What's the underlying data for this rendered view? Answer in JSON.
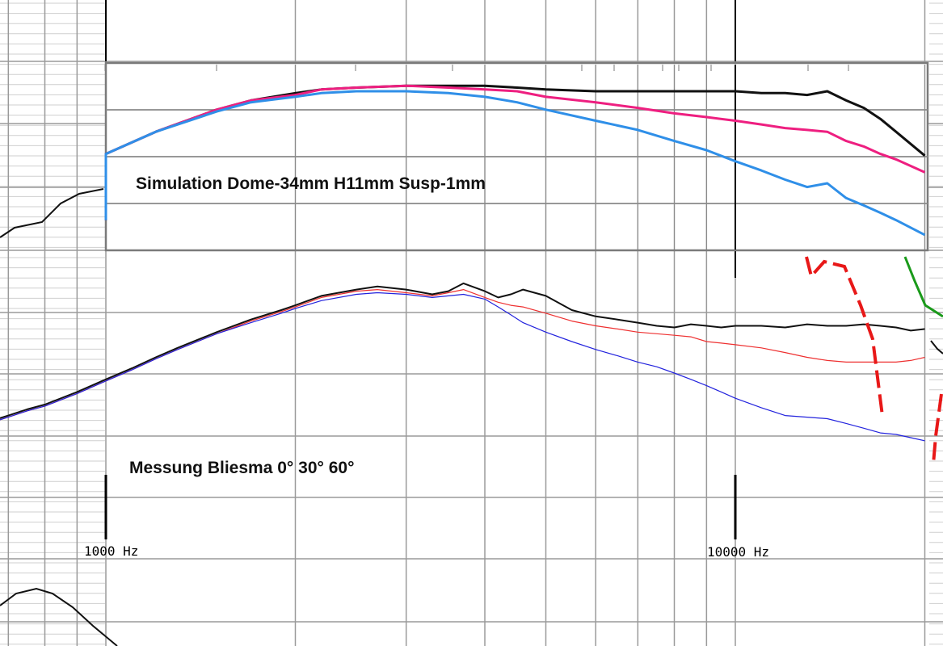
{
  "colors": {
    "background": "#ffffff",
    "grid": "#9a9a9a",
    "grid_minor": "#cfcfcf",
    "inset_border": "#7a7a7a",
    "black": "#111111",
    "pink": "#ee1f80",
    "light_blue": "#2f8fe8",
    "red": "#ee3030",
    "blue": "#2222dd",
    "marker_red": "#e81818",
    "marker_green": "#1a9a1a"
  },
  "chart_data": [
    {
      "type": "line",
      "title": "Simulation Dome-34mm H11mm Susp-1mm",
      "xscale": "log",
      "xlim": [
        600,
        20000
      ],
      "ylim": [
        0,
        1
      ],
      "series": [
        {
          "color_key": "black",
          "x": [
            600,
            700,
            800,
            900,
            1000,
            1200,
            1500,
            1700,
            2000,
            2200,
            2500,
            3000,
            3500,
            4000,
            4500,
            5000,
            6000,
            7000,
            8000,
            9000,
            10000,
            11000,
            12000,
            13000,
            14000,
            15000,
            16000,
            17000,
            18000,
            20000
          ],
          "y": [
            0.12,
            0.22,
            0.31,
            0.4,
            0.48,
            0.6,
            0.72,
            0.77,
            0.81,
            0.83,
            0.84,
            0.85,
            0.85,
            0.85,
            0.84,
            0.83,
            0.82,
            0.82,
            0.82,
            0.82,
            0.82,
            0.81,
            0.81,
            0.8,
            0.82,
            0.77,
            0.73,
            0.67,
            0.6,
            0.47
          ]
        },
        {
          "color_key": "pink",
          "x": [
            600,
            700,
            800,
            900,
            1000,
            1200,
            1500,
            1700,
            2000,
            2200,
            2500,
            3000,
            3500,
            4000,
            4500,
            5000,
            6000,
            7000,
            8000,
            9000,
            10000,
            11000,
            12000,
            13000,
            14000,
            15000,
            16000,
            17000,
            18000,
            20000
          ],
          "y": [
            0.12,
            0.22,
            0.31,
            0.4,
            0.48,
            0.6,
            0.72,
            0.77,
            0.8,
            0.83,
            0.84,
            0.85,
            0.84,
            0.83,
            0.82,
            0.79,
            0.76,
            0.73,
            0.7,
            0.68,
            0.66,
            0.64,
            0.62,
            0.61,
            0.6,
            0.55,
            0.52,
            0.48,
            0.45,
            0.38
          ]
        },
        {
          "color_key": "light_blue",
          "x": [
            600,
            700,
            800,
            900,
            1000,
            1200,
            1500,
            1700,
            2000,
            2200,
            2500,
            3000,
            3500,
            4000,
            4500,
            5000,
            6000,
            7000,
            8000,
            9000,
            10000,
            11000,
            12000,
            13000,
            14000,
            15000,
            16000,
            17000,
            18000,
            20000
          ],
          "y": [
            0.12,
            0.22,
            0.31,
            0.4,
            0.48,
            0.6,
            0.71,
            0.76,
            0.79,
            0.81,
            0.82,
            0.82,
            0.81,
            0.79,
            0.76,
            0.72,
            0.66,
            0.61,
            0.55,
            0.5,
            0.44,
            0.39,
            0.34,
            0.3,
            0.32,
            0.24,
            0.2,
            0.16,
            0.12,
            0.04
          ]
        }
      ]
    },
    {
      "type": "line",
      "title": "Messung Bliesma 0° 30° 60°",
      "xscale": "log",
      "xlim": [
        600,
        20000
      ],
      "ylim": [
        0,
        1
      ],
      "x_ticks": [
        {
          "value": 1000,
          "label": "1000 Hz"
        },
        {
          "value": 10000,
          "label": "10000 Hz"
        }
      ],
      "series": [
        {
          "color_key": "black",
          "x": [
            600,
            650,
            700,
            750,
            800,
            900,
            1000,
            1100,
            1200,
            1300,
            1500,
            1700,
            1900,
            2000,
            2200,
            2500,
            2700,
            3000,
            3300,
            3500,
            3700,
            4000,
            4200,
            4400,
            4600,
            5000,
            5500,
            6000,
            6500,
            7000,
            7500,
            8000,
            8500,
            9000,
            9500,
            10000,
            11000,
            12000,
            13000,
            14000,
            15000,
            16000,
            17000,
            18000,
            19000,
            20000
          ],
          "y": [
            0.05,
            0.09,
            0.13,
            0.17,
            0.2,
            0.28,
            0.36,
            0.43,
            0.5,
            0.56,
            0.66,
            0.74,
            0.8,
            0.83,
            0.89,
            0.93,
            0.95,
            0.93,
            0.9,
            0.92,
            0.97,
            0.92,
            0.88,
            0.9,
            0.93,
            0.89,
            0.8,
            0.76,
            0.74,
            0.72,
            0.7,
            0.69,
            0.71,
            0.7,
            0.69,
            0.7,
            0.7,
            0.69,
            0.71,
            0.7,
            0.7,
            0.71,
            0.7,
            0.69,
            0.67,
            0.68
          ]
        },
        {
          "color_key": "red",
          "x": [
            600,
            650,
            700,
            750,
            800,
            900,
            1000,
            1100,
            1200,
            1300,
            1500,
            1700,
            1900,
            2000,
            2200,
            2500,
            2700,
            3000,
            3300,
            3500,
            3700,
            4000,
            4200,
            4400,
            4600,
            5000,
            5500,
            6000,
            6500,
            7000,
            7500,
            8000,
            8500,
            9000,
            9500,
            10000,
            11000,
            12000,
            13000,
            14000,
            15000,
            16000,
            17000,
            18000,
            19000,
            20000
          ],
          "y": [
            0.04,
            0.08,
            0.12,
            0.16,
            0.19,
            0.27,
            0.35,
            0.42,
            0.49,
            0.55,
            0.65,
            0.73,
            0.79,
            0.82,
            0.88,
            0.92,
            0.93,
            0.91,
            0.89,
            0.91,
            0.93,
            0.88,
            0.85,
            0.83,
            0.82,
            0.78,
            0.73,
            0.7,
            0.68,
            0.66,
            0.65,
            0.64,
            0.63,
            0.6,
            0.59,
            0.58,
            0.56,
            0.53,
            0.5,
            0.48,
            0.47,
            0.47,
            0.47,
            0.47,
            0.48,
            0.5
          ]
        },
        {
          "color_key": "blue",
          "x": [
            600,
            650,
            700,
            750,
            800,
            900,
            1000,
            1100,
            1200,
            1300,
            1500,
            1700,
            1900,
            2000,
            2200,
            2500,
            2700,
            3000,
            3300,
            3500,
            3700,
            4000,
            4200,
            4400,
            4600,
            5000,
            5500,
            6000,
            6500,
            7000,
            7500,
            8000,
            8500,
            9000,
            9500,
            10000,
            11000,
            12000,
            13000,
            14000,
            15000,
            16000,
            17000,
            18000,
            19000,
            20000
          ],
          "y": [
            0.04,
            0.08,
            0.12,
            0.16,
            0.19,
            0.27,
            0.35,
            0.42,
            0.49,
            0.55,
            0.65,
            0.72,
            0.78,
            0.81,
            0.86,
            0.9,
            0.91,
            0.9,
            0.88,
            0.89,
            0.9,
            0.87,
            0.82,
            0.77,
            0.72,
            0.66,
            0.6,
            0.55,
            0.51,
            0.47,
            0.44,
            0.4,
            0.36,
            0.32,
            0.28,
            0.24,
            0.18,
            0.13,
            0.12,
            0.11,
            0.08,
            0.05,
            0.02,
            0.01,
            -0.01,
            -0.03
          ]
        }
      ]
    }
  ]
}
